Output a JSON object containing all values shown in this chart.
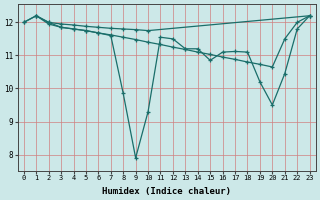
{
  "xlabel": "Humidex (Indice chaleur)",
  "bg_color": "#cce8e8",
  "line_color": "#1a6e6a",
  "grid_color_major": "#d08080",
  "grid_color_minor": "#d08080",
  "xlim": [
    -0.5,
    23.5
  ],
  "ylim": [
    7.5,
    12.55
  ],
  "xticks": [
    0,
    1,
    2,
    3,
    4,
    5,
    6,
    7,
    8,
    9,
    10,
    11,
    12,
    13,
    14,
    15,
    16,
    17,
    18,
    19,
    20,
    21,
    22,
    23
  ],
  "yticks": [
    8,
    9,
    10,
    11,
    12
  ],
  "series": [
    {
      "x": [
        0,
        1,
        2,
        3,
        4,
        5,
        6,
        7,
        8,
        9,
        10,
        23
      ],
      "y": [
        12.0,
        12.2,
        12.0,
        11.95,
        11.92,
        11.88,
        11.85,
        11.82,
        11.8,
        11.78,
        11.75,
        12.2
      ]
    },
    {
      "x": [
        0,
        1,
        2,
        3,
        4,
        5,
        6,
        7,
        8,
        9,
        10,
        11,
        12,
        13,
        14,
        15,
        16,
        17,
        18,
        19,
        20,
        21,
        22,
        23
      ],
      "y": [
        12.0,
        12.2,
        11.95,
        11.85,
        11.8,
        11.75,
        11.68,
        11.62,
        11.55,
        11.48,
        11.4,
        11.33,
        11.25,
        11.18,
        11.1,
        11.03,
        10.95,
        10.88,
        10.8,
        10.73,
        10.65,
        11.5,
        12.0,
        12.2
      ]
    },
    {
      "x": [
        1,
        2,
        3,
        4,
        5,
        6,
        7,
        8,
        9,
        10,
        11,
        12,
        13,
        14,
        15,
        16,
        17,
        18,
        19,
        20,
        21,
        22,
        23
      ],
      "y": [
        12.2,
        12.0,
        11.85,
        11.8,
        11.75,
        11.68,
        11.6,
        9.85,
        7.9,
        9.3,
        11.55,
        11.5,
        11.2,
        11.2,
        10.85,
        11.1,
        11.12,
        11.1,
        10.2,
        9.5,
        10.45,
        11.8,
        12.2
      ]
    }
  ]
}
